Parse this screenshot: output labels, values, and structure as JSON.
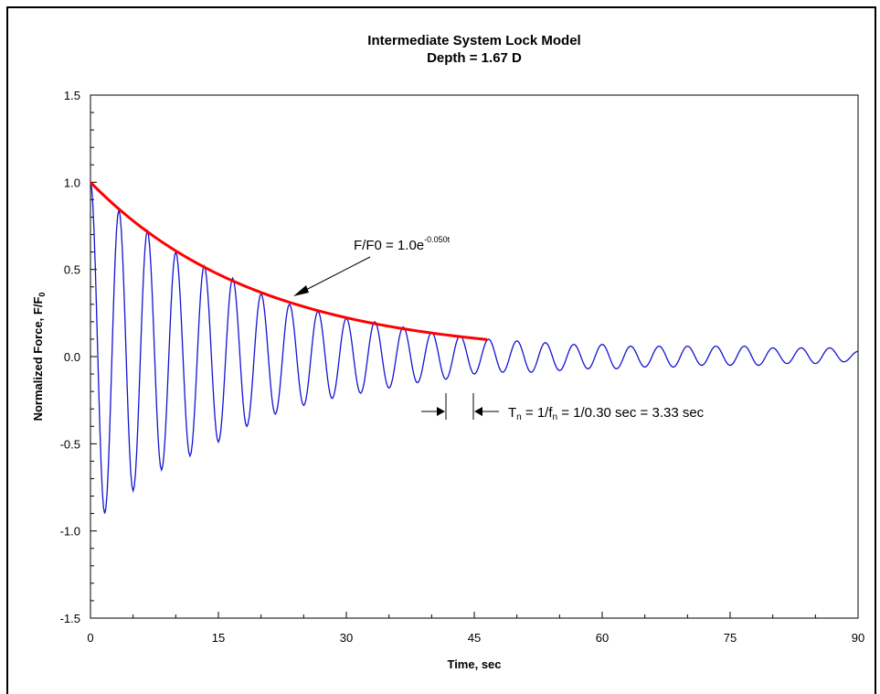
{
  "chart_data": {
    "type": "line",
    "title": "Intermediate System Lock Model",
    "subtitle": "Depth = 1.67 D",
    "xlabel": "Time, sec",
    "ylabel": "Normalized Force, F/F",
    "ylabel_sub": "0",
    "xlim": [
      0,
      90
    ],
    "ylim": [
      -1.5,
      1.5
    ],
    "x_ticks": [
      0,
      15,
      30,
      45,
      60,
      75,
      90
    ],
    "y_ticks": [
      1.5,
      1.0,
      0.5,
      0.0,
      -0.5,
      -1.0,
      -1.5
    ],
    "x_tick_labels": [
      "0",
      "15",
      "30",
      "45",
      "60",
      "75",
      "90"
    ],
    "y_tick_labels": [
      "1.5",
      "1.0",
      "0.5",
      "0.0",
      "-0.5",
      "-1.0",
      "-1.5"
    ],
    "grid": false,
    "series": [
      {
        "color": "#1414d2",
        "description": "decaying oscillation",
        "x": [
          0,
          1.67,
          3.33,
          5.0,
          6.67,
          8.33,
          10.0,
          11.67,
          13.33,
          15.0,
          16.67,
          18.33,
          20.0,
          21.67,
          23.33,
          25.0,
          26.67,
          28.33,
          30.0,
          31.67,
          33.33,
          35.0,
          36.67,
          38.33,
          40.0,
          41.67,
          43.33,
          45.0,
          46.67,
          48.33,
          50.0,
          51.67,
          53.33,
          55.0,
          56.67,
          58.33,
          60.0,
          61.67,
          63.33,
          65.0,
          66.67,
          68.33,
          70.0,
          71.67,
          73.33,
          75.0,
          76.67,
          78.33,
          80.0,
          81.67,
          83.33,
          85.0,
          86.67,
          88.33,
          90.0
        ],
        "y": [
          1.0,
          -0.9,
          0.84,
          -0.77,
          0.72,
          -0.65,
          0.6,
          -0.57,
          0.52,
          -0.49,
          0.45,
          -0.4,
          0.36,
          -0.33,
          0.3,
          -0.28,
          0.26,
          -0.24,
          0.22,
          -0.21,
          0.2,
          -0.18,
          0.17,
          -0.15,
          0.14,
          -0.13,
          0.12,
          -0.1,
          0.1,
          -0.09,
          0.09,
          -0.09,
          0.08,
          -0.08,
          0.07,
          -0.07,
          0.07,
          -0.07,
          0.06,
          -0.06,
          0.06,
          -0.06,
          0.06,
          -0.05,
          0.06,
          -0.05,
          0.06,
          -0.05,
          0.05,
          -0.04,
          0.05,
          -0.04,
          0.05,
          -0.03,
          0.03
        ]
      },
      {
        "color": "#ff0000",
        "description": "exponential envelope fit",
        "equation": "1.0*exp(-0.050*t)",
        "x_range": [
          0,
          46.5
        ]
      }
    ],
    "annotations": {
      "envelope_base": "F/F0 = 1.0e",
      "envelope_exp": "-0.050t",
      "period_T": "T",
      "period_T_sub": "n",
      "period_mid": " = 1/f",
      "period_f_sub": "n",
      "period_rest": " = 1/0.30 sec = 3.33 sec"
    }
  }
}
